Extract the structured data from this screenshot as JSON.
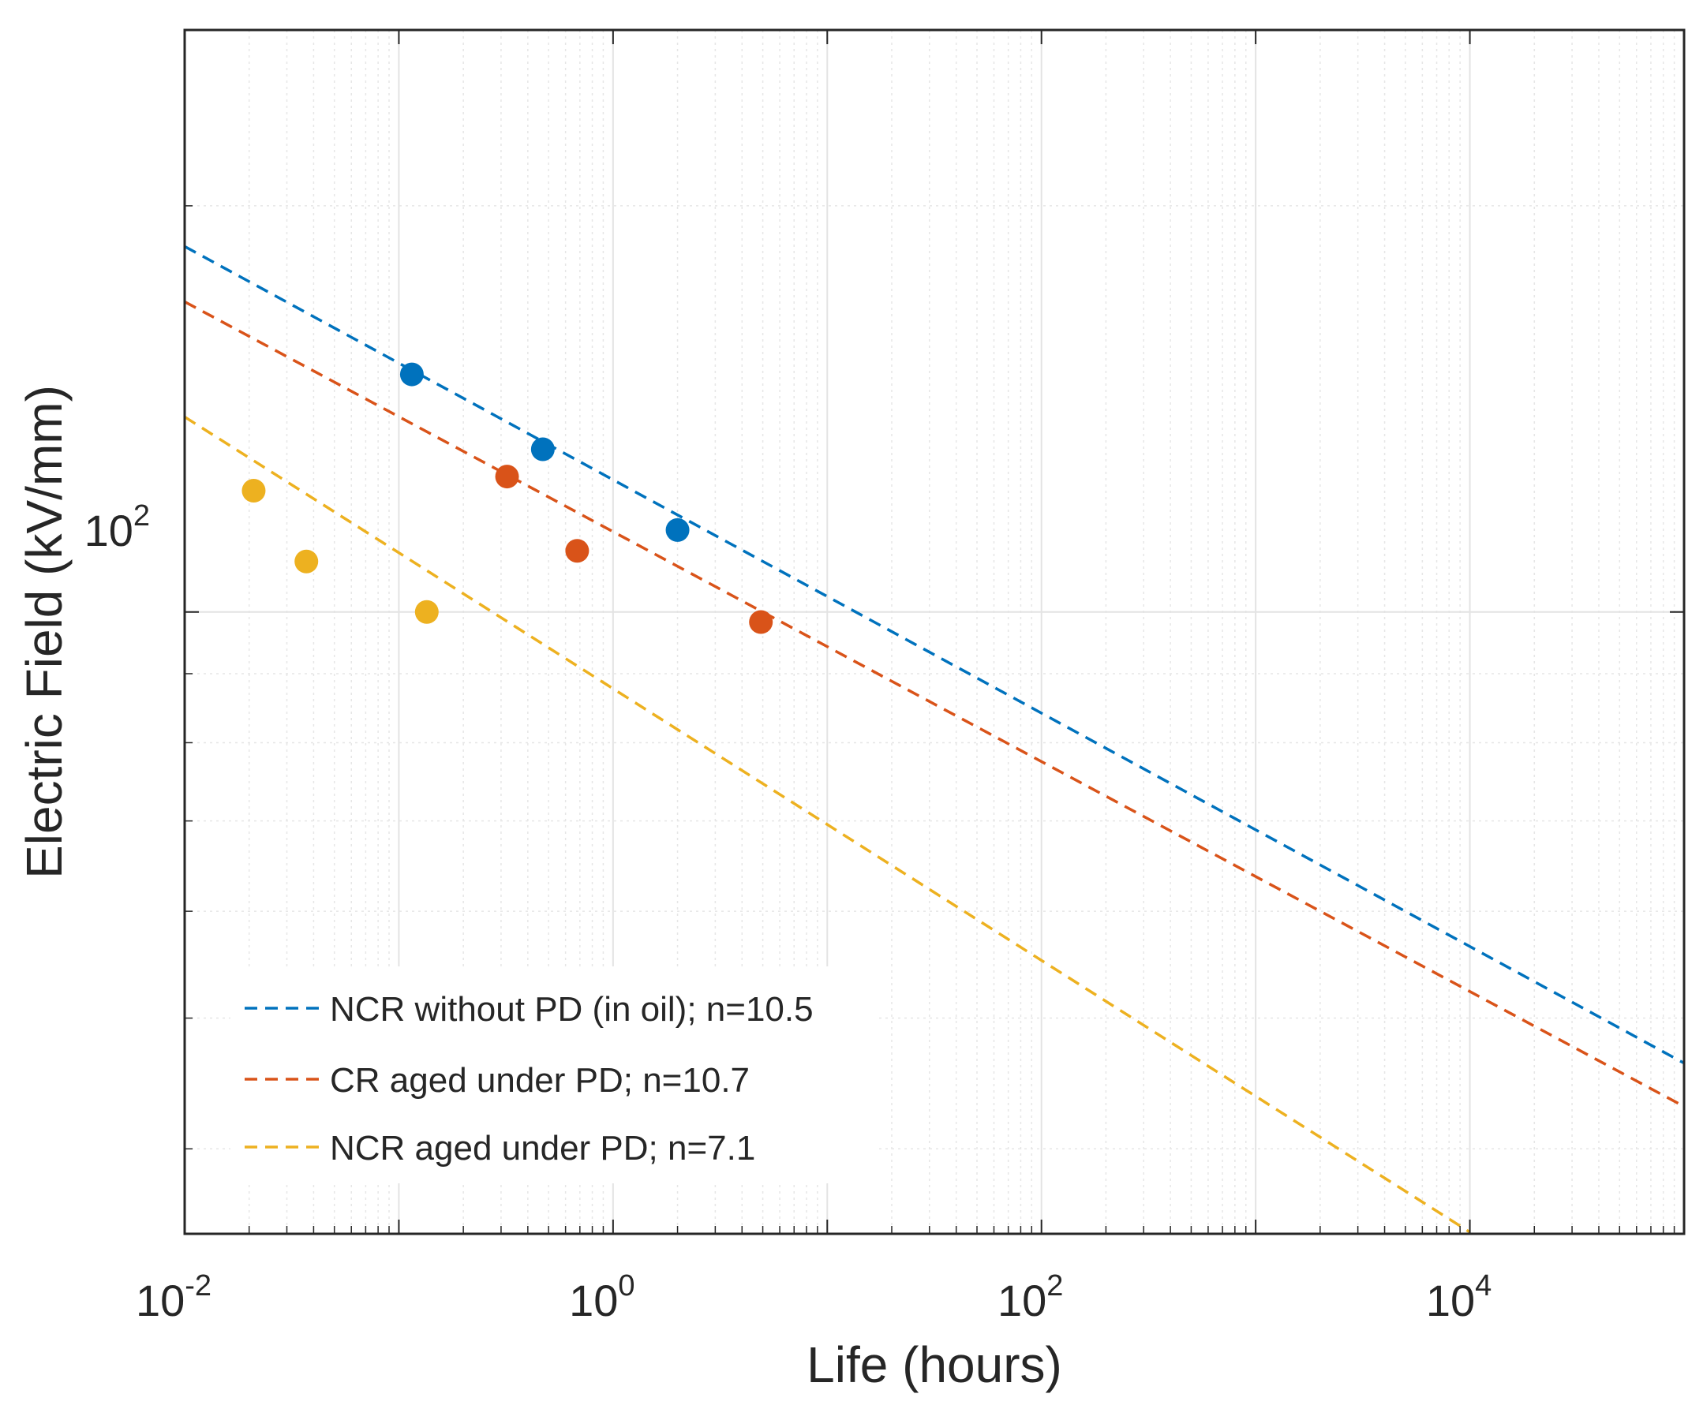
{
  "chart_data": {
    "type": "scatter",
    "xscale": "log",
    "yscale": "log",
    "xlabel": "Life (hours)",
    "ylabel": "Electric Field (kV/mm)",
    "xlim": [
      0.01,
      100000
    ],
    "ylim": [
      34.6,
      270
    ],
    "grid": true,
    "minor_grid": true,
    "x_ticks": [
      {
        "base": "10",
        "exp": "-2",
        "value": 0.01
      },
      {
        "base": "10",
        "exp": "0",
        "value": 1
      },
      {
        "base": "10",
        "exp": "2",
        "value": 100
      },
      {
        "base": "10",
        "exp": "4",
        "value": 10000
      }
    ],
    "y_ticks": [
      {
        "base": "10",
        "exp": "2",
        "value": 100
      }
    ],
    "legend_position": "bottom-left",
    "series": [
      {
        "name": "NCR without PD (in oil); n=10.5",
        "color": "#0072BD",
        "line_style": "dashed",
        "points": [
          {
            "x": 0.115,
            "y": 150
          },
          {
            "x": 0.47,
            "y": 132
          },
          {
            "x": 2.0,
            "y": 115
          }
        ],
        "fit": {
          "x": [
            0.01,
            100000
          ],
          "y": [
            186.6,
            46.3
          ]
        }
      },
      {
        "name": "CR aged under PD; n=10.7",
        "color": "#D95319",
        "line_style": "dashed",
        "points": [
          {
            "x": 0.32,
            "y": 126
          },
          {
            "x": 0.68,
            "y": 111
          },
          {
            "x": 4.9,
            "y": 98.3
          }
        ],
        "fit": {
          "x": [
            0.01,
            100000
          ],
          "y": [
            169.8,
            43.0
          ]
        }
      },
      {
        "name": "NCR aged under PD; n=7.1",
        "color": "#EDB120",
        "line_style": "dashed",
        "points": [
          {
            "x": 0.021,
            "y": 123
          },
          {
            "x": 0.037,
            "y": 109
          },
          {
            "x": 0.135,
            "y": 100
          }
        ],
        "fit": {
          "x": [
            0.01,
            10000
          ],
          "y": [
            139.5,
            34.7
          ]
        }
      }
    ]
  }
}
